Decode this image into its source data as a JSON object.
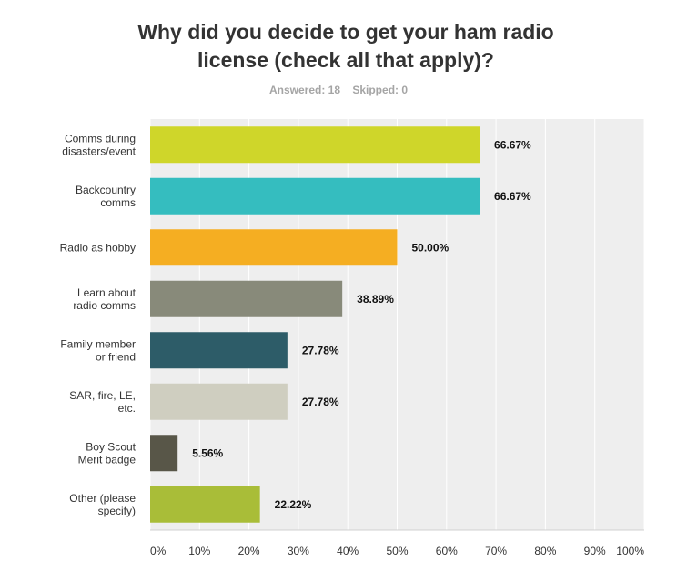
{
  "header": {
    "title_line1": "Why did you decide to get your ham radio",
    "title_line2": "license (check all that apply)?",
    "answered": "Answered: 18",
    "skipped": "Skipped: 0"
  },
  "colors": {
    "plot_bg": "#eeeeee",
    "grid": "#ffffff",
    "bars": [
      "#cfd62a",
      "#35bdbf",
      "#f5ae22",
      "#888a7a",
      "#2d5c68",
      "#cfceC0",
      "#585648",
      "#a9bd38"
    ]
  },
  "chart_data": {
    "type": "bar",
    "orientation": "horizontal",
    "categories": [
      [
        "Comms during",
        "disasters/event"
      ],
      [
        "Backcountry",
        "comms"
      ],
      [
        "Radio as hobby"
      ],
      [
        "Learn about",
        "radio comms"
      ],
      [
        "Family member",
        "or friend"
      ],
      [
        "SAR, fire, LE,",
        "etc."
      ],
      [
        "Boy Scout",
        "Merit badge"
      ],
      [
        "Other (please",
        "specify)"
      ]
    ],
    "values": [
      66.67,
      66.67,
      50.0,
      38.89,
      27.78,
      27.78,
      5.56,
      22.22
    ],
    "value_labels": [
      "66.67%",
      "66.67%",
      "50.00%",
      "38.89%",
      "27.78%",
      "27.78%",
      "5.56%",
      "22.22%"
    ],
    "xlim": [
      0,
      100
    ],
    "ticks": [
      "0%",
      "10%",
      "20%",
      "30%",
      "40%",
      "50%",
      "60%",
      "70%",
      "80%",
      "90%",
      "100%"
    ],
    "grid": true,
    "legend": "none"
  }
}
